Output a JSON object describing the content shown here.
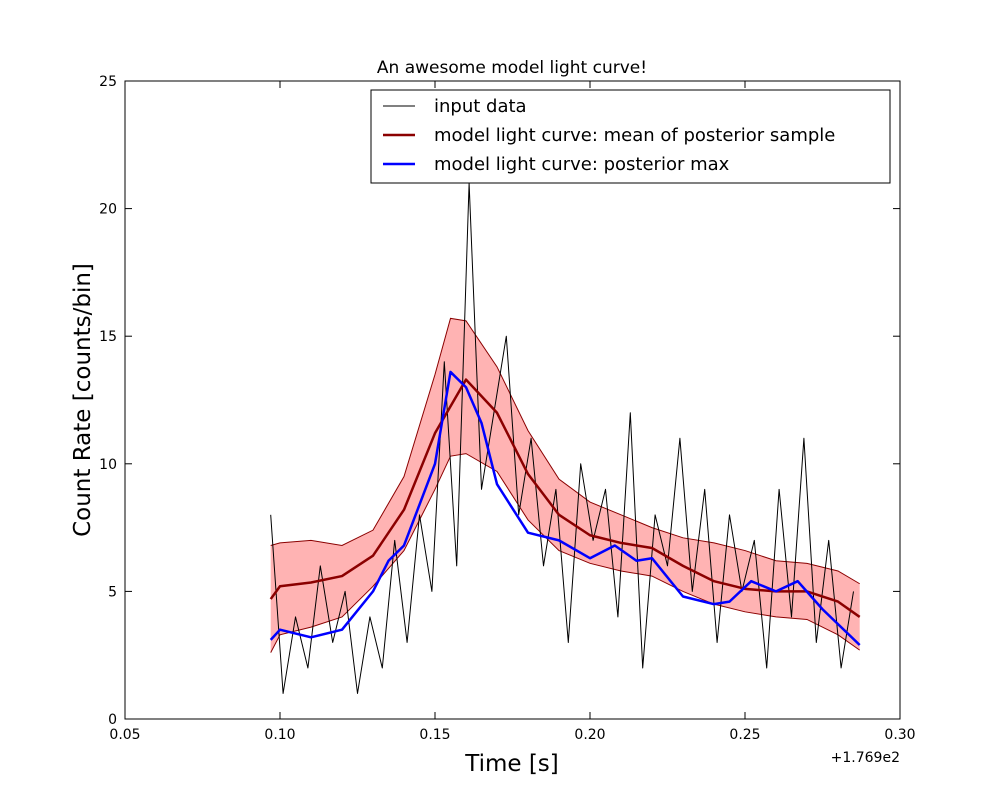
{
  "chart_data": {
    "type": "line",
    "title": "An awesome model light curve!",
    "xlabel": "Time [s]",
    "ylabel": "Count Rate [counts/bin]",
    "x_offset_label": "+1.769e2",
    "xlim": [
      0.05,
      0.3
    ],
    "ylim": [
      0,
      25
    ],
    "xticks": [
      0.05,
      {
        "value": 0.1,
        "label": "0.10"
      },
      0.15,
      {
        "value": 0.2,
        "label": "0.20"
      },
      0.25,
      {
        "value": 0.3,
        "label": "0.30"
      }
    ],
    "yticks": [
      0,
      5,
      10,
      15,
      20,
      25
    ],
    "legend": "upper right",
    "band": {
      "color": "#ff9999",
      "edge_color": "#8b0000",
      "x": [
        0.097,
        0.1,
        0.11,
        0.12,
        0.13,
        0.14,
        0.15,
        0.155,
        0.16,
        0.17,
        0.18,
        0.19,
        0.2,
        0.21,
        0.22,
        0.23,
        0.24,
        0.25,
        0.26,
        0.27,
        0.28,
        0.287
      ],
      "upper": [
        6.8,
        6.9,
        7.0,
        6.8,
        7.4,
        9.5,
        13.5,
        15.7,
        15.6,
        13.8,
        11.3,
        9.4,
        8.5,
        8.0,
        7.5,
        7.1,
        6.9,
        6.6,
        6.2,
        6.1,
        5.8,
        5.3
      ],
      "lower": [
        2.6,
        3.3,
        3.6,
        4.0,
        5.2,
        6.6,
        9.0,
        10.3,
        10.4,
        9.7,
        7.8,
        6.6,
        6.1,
        5.8,
        5.6,
        5.0,
        4.5,
        4.2,
        4.0,
        3.9,
        3.3,
        2.7
      ]
    },
    "series": [
      {
        "name": "input data",
        "color": "#000000",
        "width": 1,
        "x": [
          0.097,
          0.101,
          0.105,
          0.109,
          0.113,
          0.117,
          0.121,
          0.125,
          0.129,
          0.133,
          0.137,
          0.141,
          0.145,
          0.149,
          0.153,
          0.157,
          0.161,
          0.165,
          0.169,
          0.173,
          0.177,
          0.181,
          0.185,
          0.189,
          0.193,
          0.197,
          0.201,
          0.205,
          0.209,
          0.213,
          0.217,
          0.221,
          0.225,
          0.229,
          0.233,
          0.237,
          0.241,
          0.245,
          0.249,
          0.253,
          0.257,
          0.261,
          0.265,
          0.269,
          0.273,
          0.277,
          0.281,
          0.285
        ],
        "values": [
          8,
          1,
          4,
          2,
          6,
          3,
          5,
          1,
          4,
          2,
          7,
          3,
          8,
          5,
          14,
          6,
          21,
          9,
          12,
          15,
          8,
          11,
          6,
          9,
          3,
          10,
          7,
          9,
          4,
          12,
          2,
          8,
          6,
          11,
          5,
          9,
          3,
          8,
          5,
          7,
          2,
          9,
          4,
          11,
          3,
          7,
          2,
          5
        ]
      },
      {
        "name": "model light curve: mean of posterior sample",
        "color": "#8b0000",
        "width": 2.5,
        "x": [
          0.097,
          0.1,
          0.11,
          0.12,
          0.13,
          0.14,
          0.15,
          0.16,
          0.17,
          0.18,
          0.19,
          0.2,
          0.21,
          0.22,
          0.23,
          0.24,
          0.25,
          0.26,
          0.27,
          0.28,
          0.287
        ],
        "values": [
          4.7,
          5.2,
          5.35,
          5.6,
          6.4,
          8.2,
          11.2,
          13.3,
          12.0,
          9.6,
          8.0,
          7.2,
          6.9,
          6.7,
          6.0,
          5.4,
          5.1,
          5.0,
          5.0,
          4.6,
          4.0
        ]
      },
      {
        "name": "model light curve: posterior max",
        "color": "#0000ff",
        "width": 2.5,
        "x": [
          0.097,
          0.1,
          0.11,
          0.12,
          0.13,
          0.135,
          0.14,
          0.15,
          0.155,
          0.16,
          0.165,
          0.17,
          0.18,
          0.19,
          0.2,
          0.208,
          0.215,
          0.22,
          0.23,
          0.24,
          0.245,
          0.252,
          0.26,
          0.267,
          0.275,
          0.287
        ],
        "values": [
          3.1,
          3.5,
          3.2,
          3.5,
          5.0,
          6.2,
          6.8,
          10.0,
          13.6,
          13.0,
          11.6,
          9.2,
          7.3,
          7.0,
          6.3,
          6.8,
          6.2,
          6.3,
          4.8,
          4.5,
          4.6,
          5.4,
          5.0,
          5.4,
          4.3,
          2.9
        ]
      }
    ]
  }
}
